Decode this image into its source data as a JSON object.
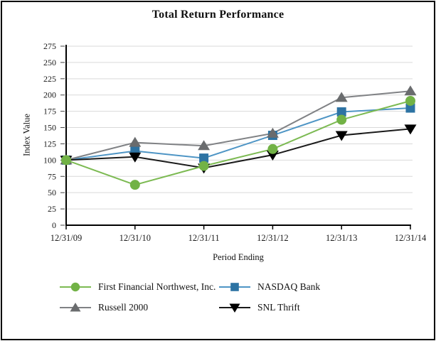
{
  "chart_data": {
    "type": "line",
    "title": "Total Return Performance",
    "xlabel": "Period Ending",
    "ylabel": "Index Value",
    "categories": [
      "12/31/09",
      "12/31/10",
      "12/31/11",
      "12/31/12",
      "12/31/13",
      "12/31/14"
    ],
    "ylim": [
      0,
      275
    ],
    "y_ticks": [
      0,
      25,
      50,
      75,
      100,
      125,
      150,
      175,
      200,
      225,
      250,
      275
    ],
    "grid": true,
    "legend_position": "bottom",
    "axis_color": "#000000",
    "gridline_color": "#D9D9D9",
    "series": [
      {
        "name": "First Financial Northwest, Inc.",
        "marker": "circle",
        "line_color": "#7CBA52",
        "marker_color": "#72B246",
        "values": [
          100,
          62,
          91,
          117,
          162,
          191
        ]
      },
      {
        "name": "NASDAQ Bank",
        "marker": "square",
        "line_color": "#4E95C5",
        "marker_color": "#2D73A3",
        "values": [
          100,
          114,
          103,
          138,
          174,
          180
        ]
      },
      {
        "name": "Russell 2000",
        "marker": "triangle-up",
        "line_color": "#808285",
        "marker_color": "#6A6C6E",
        "values": [
          100,
          127,
          122,
          141,
          196,
          206
        ]
      },
      {
        "name": "SNL Thrift",
        "marker": "triangle-down",
        "line_color": "#1A1A1A",
        "marker_color": "#000000",
        "values": [
          100,
          105,
          88,
          108,
          138,
          148
        ]
      }
    ]
  }
}
